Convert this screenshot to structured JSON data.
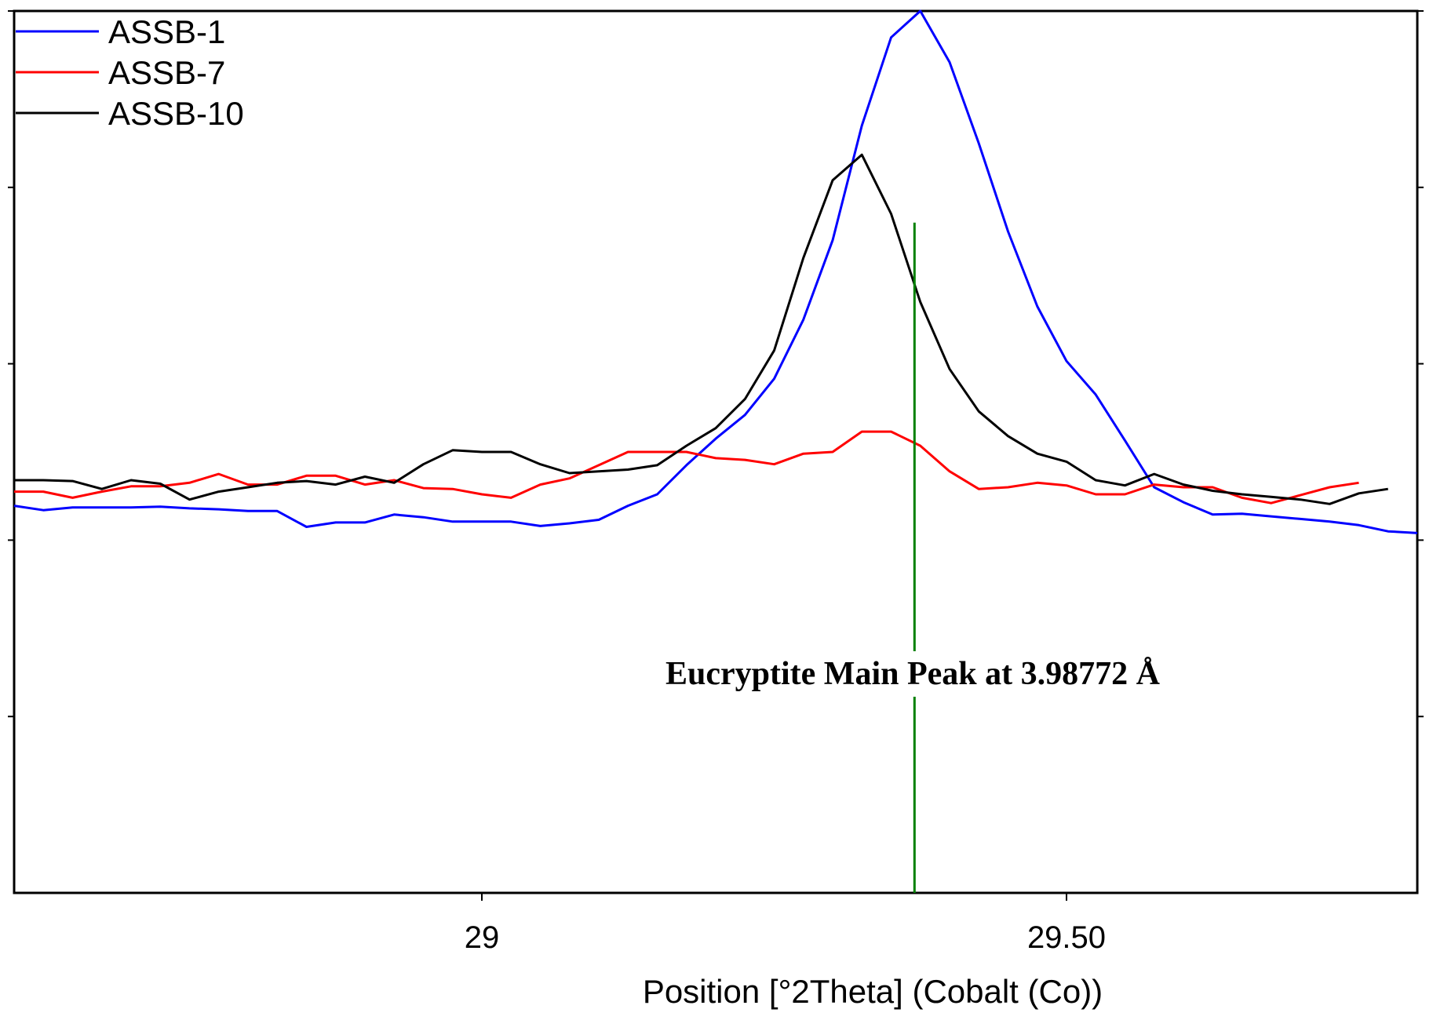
{
  "chart_data": {
    "type": "line",
    "title": "",
    "xlabel": "Position [°2Theta] (Cobalt (Co))",
    "ylabel": "",
    "xlim": [
      28.6,
      29.8
    ],
    "ylim": [
      0,
      100
    ],
    "x_ticks": [
      {
        "value": 29.0,
        "label": "29"
      },
      {
        "value": 29.5,
        "label": "29.50"
      }
    ],
    "y_ticks": [
      20,
      40,
      60,
      80,
      100
    ],
    "legend_position": "top-left",
    "series": [
      {
        "name": "ASSB-1",
        "color": "#0000ff",
        "points": [
          [
            28.6,
            43.9
          ],
          [
            28.625,
            43.4
          ],
          [
            28.65,
            43.7
          ],
          [
            28.675,
            43.7
          ],
          [
            28.7,
            43.7
          ],
          [
            28.725,
            43.8
          ],
          [
            28.75,
            43.6
          ],
          [
            28.775,
            43.5
          ],
          [
            28.8,
            43.3
          ],
          [
            28.825,
            43.3
          ],
          [
            28.85,
            41.5
          ],
          [
            28.875,
            42.0
          ],
          [
            28.9,
            42.0
          ],
          [
            28.925,
            42.9
          ],
          [
            28.95,
            42.6
          ],
          [
            28.975,
            42.1
          ],
          [
            29.0,
            42.1
          ],
          [
            29.025,
            42.1
          ],
          [
            29.05,
            41.6
          ],
          [
            29.075,
            41.9
          ],
          [
            29.1,
            42.3
          ],
          [
            29.125,
            43.9
          ],
          [
            29.15,
            45.2
          ],
          [
            29.175,
            48.5
          ],
          [
            29.2,
            51.5
          ],
          [
            29.225,
            54.2
          ],
          [
            29.25,
            58.3
          ],
          [
            29.275,
            65.0
          ],
          [
            29.3,
            74.0
          ],
          [
            29.325,
            87.0
          ],
          [
            29.35,
            97.0
          ],
          [
            29.375,
            100.0
          ],
          [
            29.4,
            94.2
          ],
          [
            29.425,
            85.0
          ],
          [
            29.45,
            75.0
          ],
          [
            29.475,
            66.5
          ],
          [
            29.5,
            60.3
          ],
          [
            29.525,
            56.5
          ],
          [
            29.55,
            51.3
          ],
          [
            29.575,
            46.0
          ],
          [
            29.6,
            44.3
          ],
          [
            29.625,
            42.9
          ],
          [
            29.65,
            43.0
          ],
          [
            29.675,
            42.7
          ],
          [
            29.7,
            42.4
          ],
          [
            29.725,
            42.1
          ],
          [
            29.75,
            41.7
          ],
          [
            29.775,
            41.0
          ],
          [
            29.8,
            40.8
          ]
        ]
      },
      {
        "name": "ASSB-7",
        "color": "#ff0000",
        "points": [
          [
            28.6,
            45.5
          ],
          [
            28.625,
            45.5
          ],
          [
            28.65,
            44.8
          ],
          [
            28.675,
            45.5
          ],
          [
            28.7,
            46.1
          ],
          [
            28.725,
            46.1
          ],
          [
            28.75,
            46.5
          ],
          [
            28.775,
            47.5
          ],
          [
            28.8,
            46.3
          ],
          [
            28.825,
            46.3
          ],
          [
            28.85,
            47.3
          ],
          [
            28.875,
            47.3
          ],
          [
            28.9,
            46.3
          ],
          [
            28.925,
            46.8
          ],
          [
            28.95,
            45.9
          ],
          [
            28.975,
            45.8
          ],
          [
            29.0,
            45.2
          ],
          [
            29.025,
            44.8
          ],
          [
            29.05,
            46.3
          ],
          [
            29.075,
            47.0
          ],
          [
            29.1,
            48.5
          ],
          [
            29.125,
            50.0
          ],
          [
            29.15,
            50.0
          ],
          [
            29.175,
            50.0
          ],
          [
            29.2,
            49.3
          ],
          [
            29.225,
            49.1
          ],
          [
            29.25,
            48.6
          ],
          [
            29.275,
            49.8
          ],
          [
            29.3,
            50.0
          ],
          [
            29.325,
            52.3
          ],
          [
            29.35,
            52.3
          ],
          [
            29.375,
            50.7
          ],
          [
            29.4,
            47.8
          ],
          [
            29.425,
            45.8
          ],
          [
            29.45,
            46.0
          ],
          [
            29.475,
            46.5
          ],
          [
            29.5,
            46.2
          ],
          [
            29.525,
            45.2
          ],
          [
            29.55,
            45.2
          ],
          [
            29.575,
            46.3
          ],
          [
            29.6,
            46.0
          ],
          [
            29.625,
            46.0
          ],
          [
            29.65,
            44.8
          ],
          [
            29.675,
            44.2
          ],
          [
            29.7,
            45.1
          ],
          [
            29.725,
            46.0
          ],
          [
            29.75,
            46.5
          ]
        ]
      },
      {
        "name": "ASSB-10",
        "color": "#000000",
        "points": [
          [
            28.6,
            46.8
          ],
          [
            28.625,
            46.8
          ],
          [
            28.65,
            46.7
          ],
          [
            28.675,
            45.8
          ],
          [
            28.7,
            46.8
          ],
          [
            28.725,
            46.4
          ],
          [
            28.75,
            44.6
          ],
          [
            28.775,
            45.5
          ],
          [
            28.8,
            46.0
          ],
          [
            28.825,
            46.5
          ],
          [
            28.85,
            46.7
          ],
          [
            28.875,
            46.3
          ],
          [
            28.9,
            47.2
          ],
          [
            28.925,
            46.5
          ],
          [
            28.95,
            48.6
          ],
          [
            28.975,
            50.2
          ],
          [
            29.0,
            50.0
          ],
          [
            29.025,
            50.0
          ],
          [
            29.05,
            48.6
          ],
          [
            29.075,
            47.6
          ],
          [
            29.1,
            47.8
          ],
          [
            29.125,
            48.0
          ],
          [
            29.15,
            48.5
          ],
          [
            29.175,
            50.7
          ],
          [
            29.2,
            52.7
          ],
          [
            29.225,
            56.0
          ],
          [
            29.25,
            61.5
          ],
          [
            29.275,
            72.0
          ],
          [
            29.3,
            80.8
          ],
          [
            29.325,
            83.7
          ],
          [
            29.35,
            77.0
          ],
          [
            29.375,
            67.0
          ],
          [
            29.4,
            59.4
          ],
          [
            29.425,
            54.6
          ],
          [
            29.45,
            51.8
          ],
          [
            29.475,
            49.8
          ],
          [
            29.5,
            48.9
          ],
          [
            29.525,
            46.8
          ],
          [
            29.55,
            46.2
          ],
          [
            29.575,
            47.5
          ],
          [
            29.6,
            46.3
          ],
          [
            29.625,
            45.6
          ],
          [
            29.65,
            45.2
          ],
          [
            29.675,
            44.9
          ],
          [
            29.7,
            44.6
          ],
          [
            29.725,
            44.1
          ],
          [
            29.75,
            45.3
          ],
          [
            29.775,
            45.8
          ]
        ]
      }
    ],
    "reference_line": {
      "x": 29.37,
      "color": "#008000",
      "y_top": 76
    },
    "annotation": {
      "text": "Eucryptite Main Peak at 3.98772 Å"
    }
  }
}
